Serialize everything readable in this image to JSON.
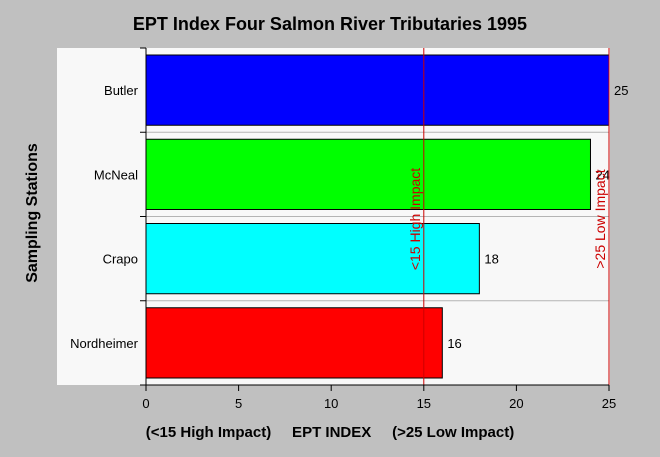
{
  "chart_data": {
    "type": "bar",
    "orientation": "horizontal",
    "title": "EPT Index Four Salmon River Tributaries 1995",
    "xlabel": "(<15 High Impact)     EPT INDEX     (>25 Low Impact)",
    "ylabel": "Sampling Stations",
    "categories": [
      "Butler",
      "McNeal",
      "Crapo",
      "Nordheimer"
    ],
    "values": [
      25,
      24,
      18,
      16
    ],
    "bar_colors": [
      "#0000ff",
      "#00ff00",
      "#00ffff",
      "#ff0000"
    ],
    "xlim": [
      0,
      25
    ],
    "xticks": [
      0,
      5,
      10,
      15,
      20,
      25
    ],
    "grid": "horizontal",
    "reference_lines": [
      {
        "value": 15,
        "label": "<15 High Impact",
        "color": "#cc0000"
      },
      {
        "value": 25,
        "label": ">25 Low Impact",
        "color": "#cc0000"
      }
    ]
  }
}
